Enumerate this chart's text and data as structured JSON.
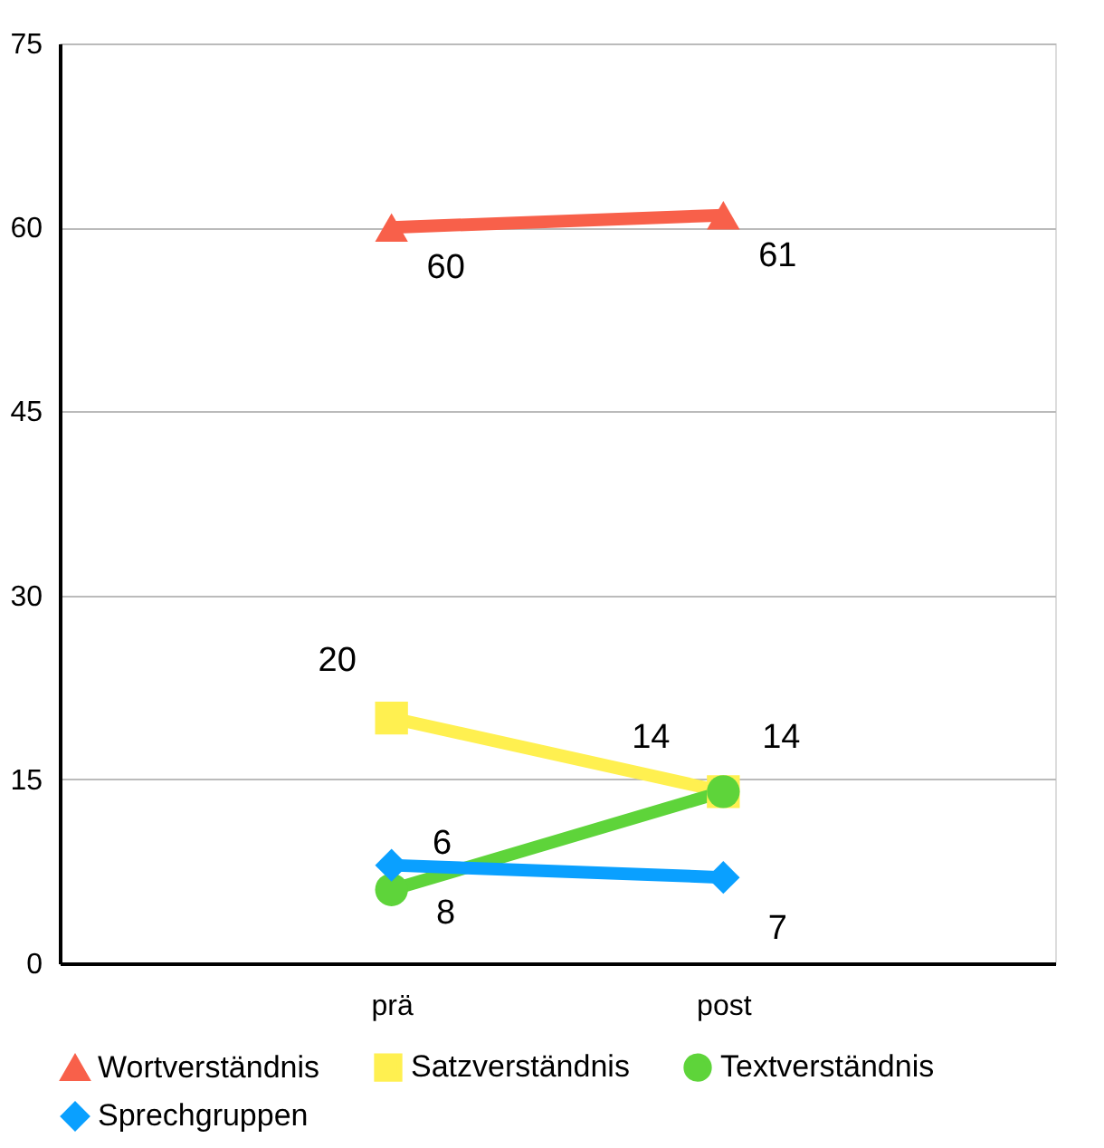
{
  "chart_data": {
    "type": "line",
    "categories": [
      "prä",
      "post"
    ],
    "series": [
      {
        "name": "Wortverständnis",
        "color": "#f8604a",
        "marker": "triangle",
        "values": [
          60,
          61
        ]
      },
      {
        "name": "Satzverständnis",
        "color": "#fff050",
        "marker": "square",
        "values": [
          20,
          14
        ]
      },
      {
        "name": "Textverständnis",
        "color": "#5ed43a",
        "marker": "circle",
        "values": [
          6,
          14
        ]
      },
      {
        "name": "Sprechgruppen",
        "color": "#0aa0ff",
        "marker": "diamond",
        "values": [
          8,
          7
        ]
      }
    ],
    "ylim": [
      0,
      75
    ],
    "yticks": [
      0,
      15,
      30,
      45,
      60,
      75
    ],
    "grid": "y",
    "legend": "bottom",
    "data_labels": true
  }
}
